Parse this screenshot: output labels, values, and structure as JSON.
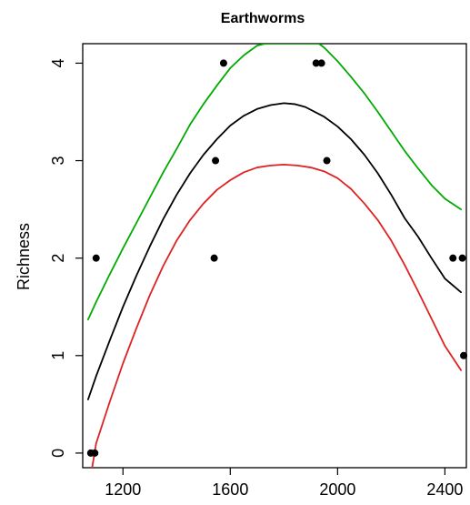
{
  "chart_data": {
    "type": "scatter",
    "title": "Earthworms",
    "xlabel": "",
    "ylabel": "Richness",
    "xlim": [
      1050,
      2480
    ],
    "ylim": [
      -0.15,
      4.2
    ],
    "xticks": [
      1200,
      1600,
      2000,
      2400
    ],
    "xtick_labels": [
      "1200",
      "1600",
      "2000",
      "2400"
    ],
    "yticks": [
      0,
      1,
      2,
      3,
      4
    ],
    "ytick_labels": [
      "0",
      "1",
      "2",
      "3",
      "4"
    ],
    "grid": false,
    "legend": "none",
    "points": [
      {
        "x": 1080,
        "y": 0
      },
      {
        "x": 1095,
        "y": 0
      },
      {
        "x": 1100,
        "y": 2
      },
      {
        "x": 1540,
        "y": 2
      },
      {
        "x": 1545,
        "y": 3
      },
      {
        "x": 1575,
        "y": 4
      },
      {
        "x": 1920,
        "y": 4
      },
      {
        "x": 1940,
        "y": 4
      },
      {
        "x": 1960,
        "y": 3
      },
      {
        "x": 2430,
        "y": 2
      },
      {
        "x": 2465,
        "y": 2
      },
      {
        "x": 2470,
        "y": 1
      }
    ],
    "series": [
      {
        "color": "#00aa00",
        "x": [
          1070,
          1100,
          1150,
          1200,
          1250,
          1300,
          1350,
          1400,
          1450,
          1500,
          1550,
          1600,
          1650,
          1700,
          1730,
          1930,
          1950,
          2000,
          2050,
          2100,
          2150,
          2200,
          2250,
          2300,
          2350,
          2400,
          2460
        ],
        "y": [
          1.37,
          1.55,
          1.83,
          2.1,
          2.36,
          2.62,
          2.88,
          3.12,
          3.37,
          3.58,
          3.77,
          3.95,
          4.08,
          4.18,
          4.2,
          4.2,
          4.16,
          4.02,
          3.86,
          3.69,
          3.5,
          3.3,
          3.1,
          2.92,
          2.75,
          2.61,
          2.5
        ]
      },
      {
        "color": "#000000",
        "x": [
          1070,
          1100,
          1150,
          1200,
          1250,
          1300,
          1350,
          1400,
          1450,
          1500,
          1550,
          1600,
          1650,
          1700,
          1750,
          1800,
          1840,
          1880,
          1950,
          2000,
          2050,
          2100,
          2150,
          2200,
          2250,
          2300,
          2350,
          2400,
          2460
        ],
        "y": [
          0.55,
          0.79,
          1.15,
          1.5,
          1.82,
          2.12,
          2.4,
          2.65,
          2.87,
          3.06,
          3.22,
          3.36,
          3.46,
          3.53,
          3.57,
          3.59,
          3.58,
          3.55,
          3.45,
          3.35,
          3.22,
          3.06,
          2.87,
          2.65,
          2.41,
          2.22,
          2.0,
          1.79,
          1.65
        ]
      },
      {
        "color": "#dd2222",
        "x": [
          1085,
          1100,
          1150,
          1200,
          1250,
          1300,
          1350,
          1400,
          1450,
          1500,
          1550,
          1600,
          1650,
          1700,
          1750,
          1800,
          1850,
          1900,
          1950,
          2000,
          2050,
          2100,
          2150,
          2200,
          2250,
          2300,
          2350,
          2400,
          2460
        ],
        "y": [
          -0.15,
          0.1,
          0.52,
          0.92,
          1.28,
          1.62,
          1.92,
          2.18,
          2.39,
          2.56,
          2.7,
          2.8,
          2.88,
          2.93,
          2.95,
          2.96,
          2.95,
          2.93,
          2.89,
          2.82,
          2.71,
          2.56,
          2.39,
          2.18,
          1.93,
          1.66,
          1.38,
          1.1,
          0.85
        ]
      }
    ]
  }
}
